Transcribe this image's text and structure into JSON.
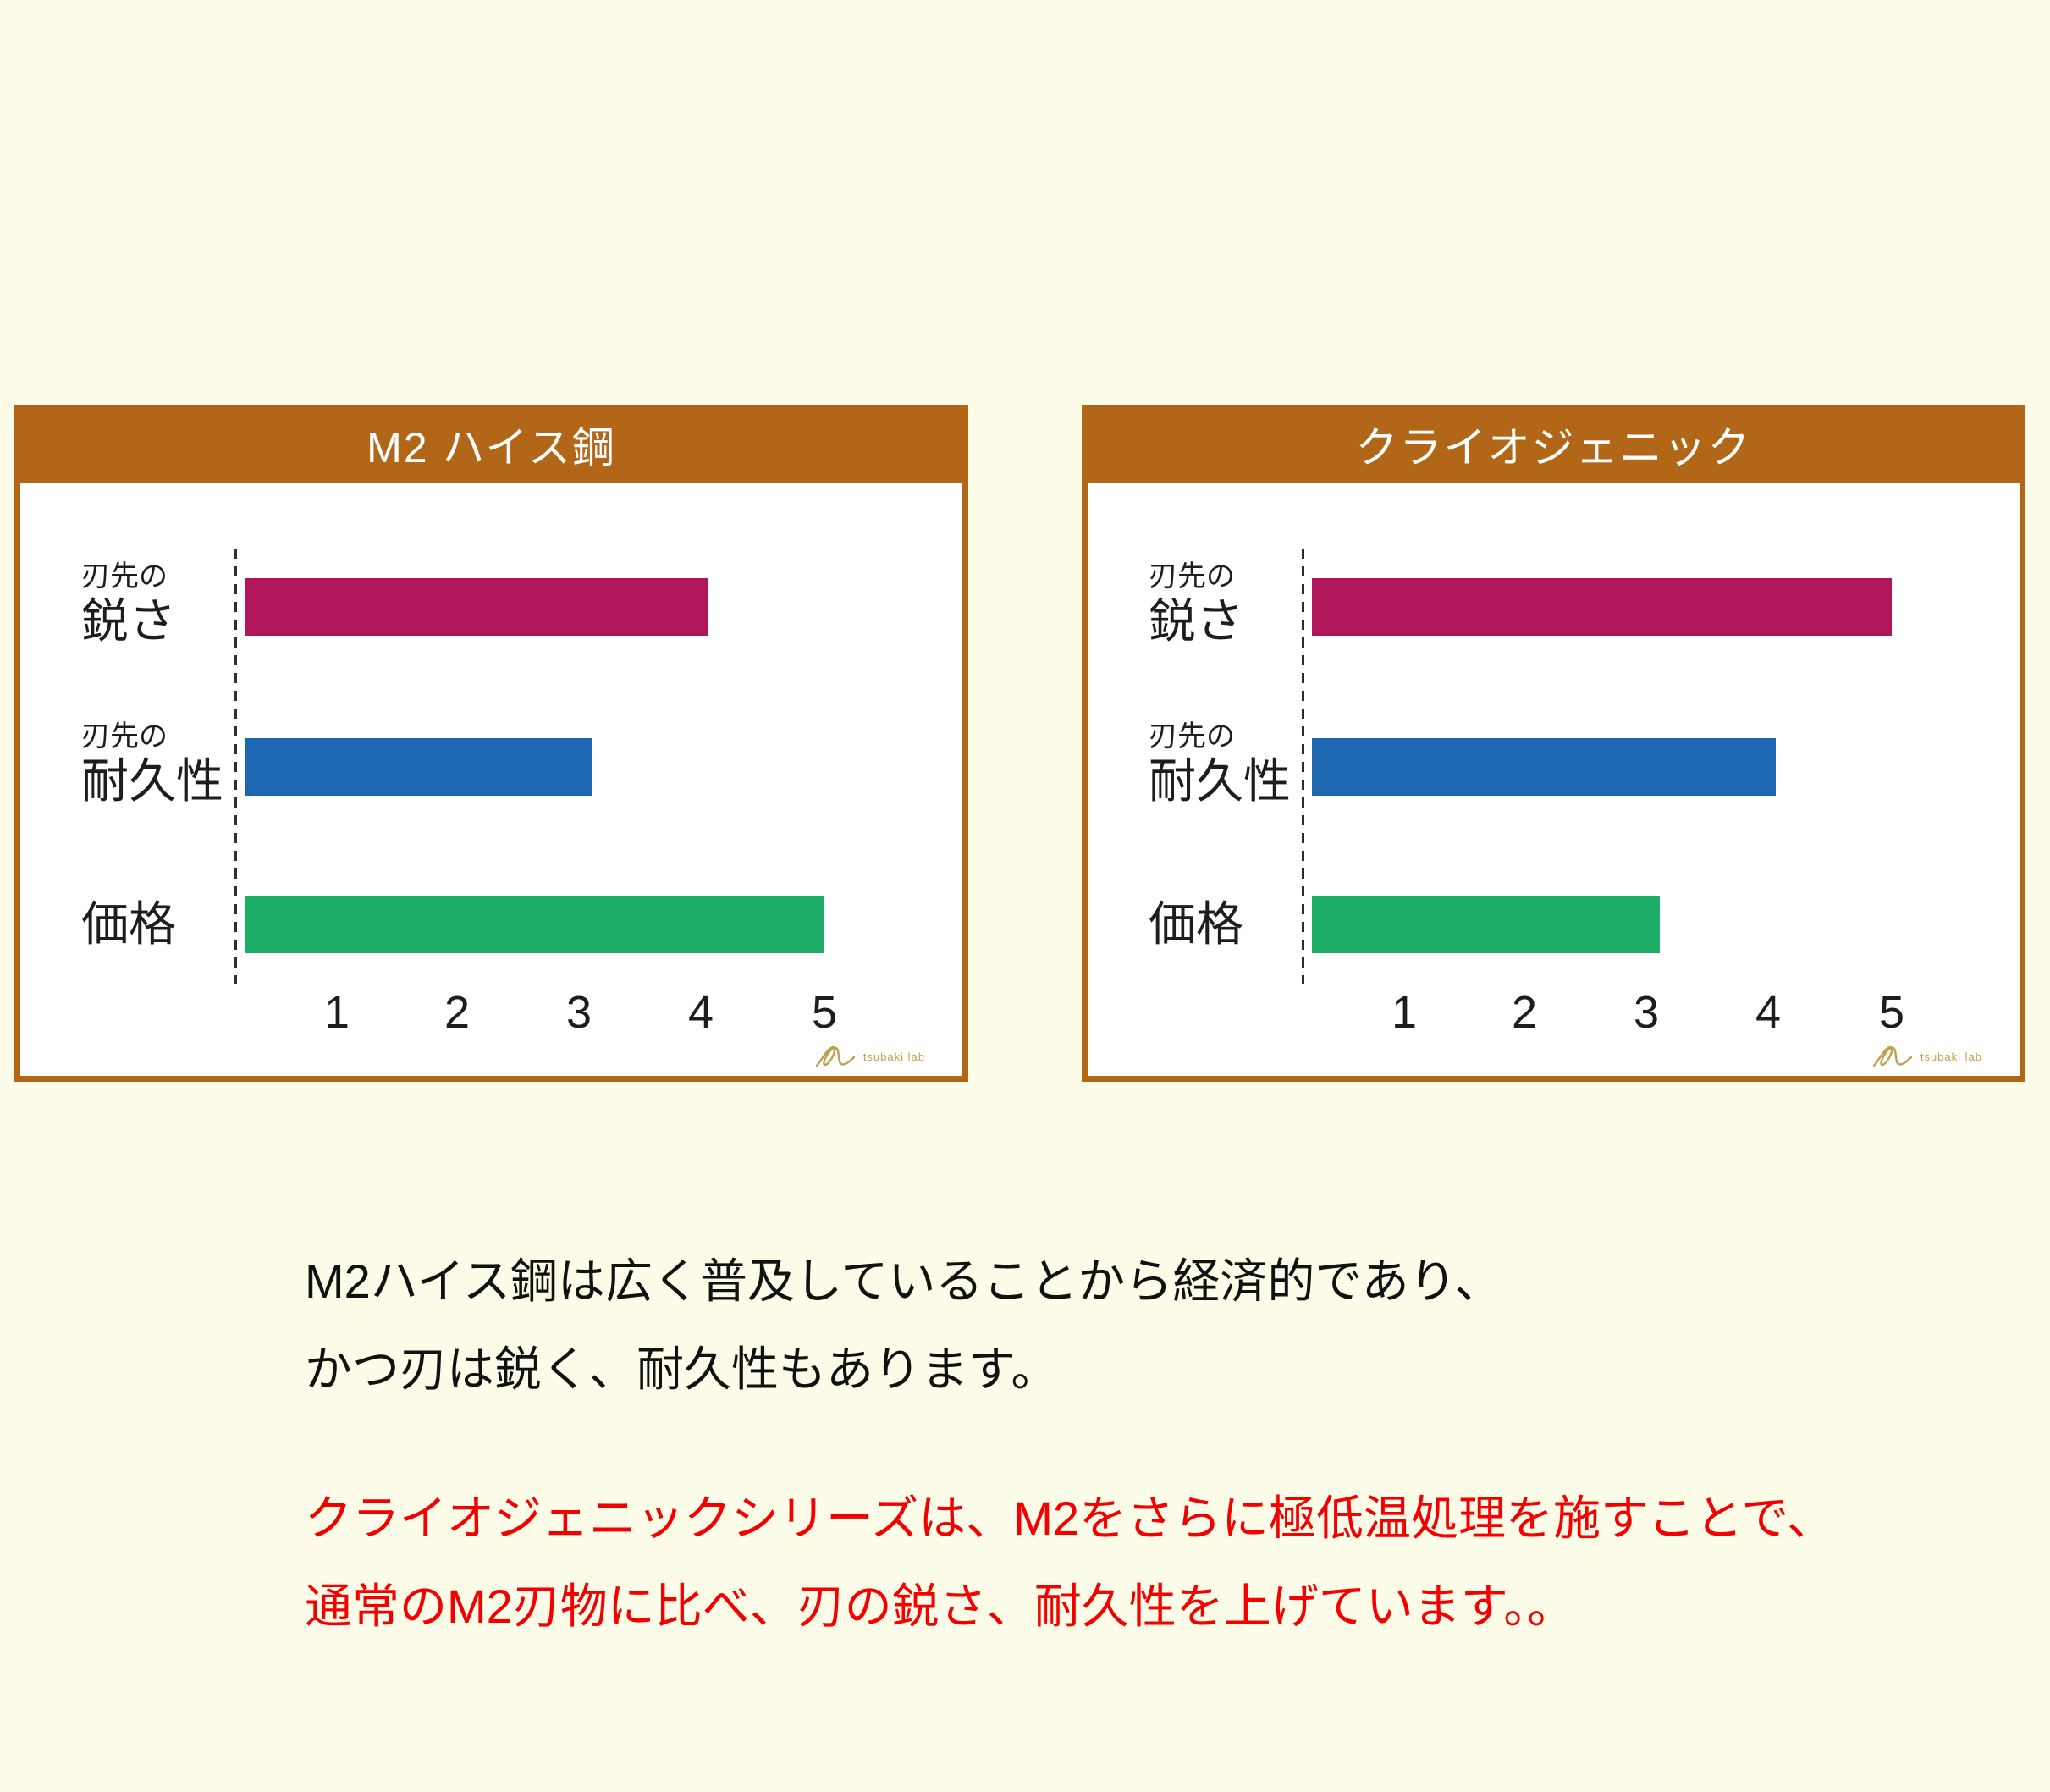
{
  "page": {
    "background": "#FCFCE8"
  },
  "theme": {
    "header_bg": "#B26617",
    "panel_border": "#B26617",
    "bar_crimson": "#B1165B",
    "bar_blue": "#1C67AF",
    "bar_green": "#1BAC65",
    "axis_dash_color": "#2E2E2E",
    "logo_gold": "#BFA050",
    "caption_black": "#111111",
    "caption_red": "#F40000"
  },
  "charts": [
    {
      "title": "M2 ハイス鋼",
      "rows": [
        {
          "label_small": "刃先の",
          "label": "鋭さ",
          "value": 4,
          "color": "#B1165B"
        },
        {
          "label_small": "刃先の",
          "label": "耐久性",
          "value": 3,
          "color": "#1C67AF"
        },
        {
          "label_small": "",
          "label": "価格",
          "value": 5,
          "color": "#1BAC65"
        }
      ],
      "x_ticks": [
        "1",
        "2",
        "3",
        "4",
        "5"
      ],
      "logo_text": "tsubaki lab"
    },
    {
      "title": "クライオジェニック",
      "rows": [
        {
          "label_small": "刃先の",
          "label": "鋭さ",
          "value": 5,
          "color": "#B1165B"
        },
        {
          "label_small": "刃先の",
          "label": "耐久性",
          "value": 4,
          "color": "#1C67AF"
        },
        {
          "label_small": "",
          "label": "価格",
          "value": 3,
          "color": "#1BAC65"
        }
      ],
      "x_ticks": [
        "1",
        "2",
        "3",
        "4",
        "5"
      ],
      "logo_text": "tsubaki lab"
    }
  ],
  "captions": {
    "black": {
      "color": "#111111",
      "lines": [
        "M2ハイス鋼は広く普及していることから経済的であり、",
        "かつ刃は鋭く、耐久性もあります。"
      ]
    },
    "red": {
      "color": "#F40000",
      "lines": [
        "クライオジェニックシリーズは、M2をさらに極低温処理を施すことで、",
        "通常のM2刃物に比べ、刃の鋭さ、耐久性を上げています。。"
      ]
    }
  },
  "chart_data": [
    {
      "type": "bar",
      "orientation": "horizontal",
      "title": "M2 ハイス鋼",
      "categories": [
        "刃先の鋭さ",
        "刃先の耐久性",
        "価格"
      ],
      "values": [
        4,
        3,
        5
      ],
      "bar_colors": [
        "#B1165B",
        "#1C67AF",
        "#1BAC65"
      ],
      "xlabel": "",
      "ylabel": "",
      "xlim": [
        0,
        5
      ],
      "x_ticks": [
        1,
        2,
        3,
        4,
        5
      ],
      "grid": false,
      "legend": false
    },
    {
      "type": "bar",
      "orientation": "horizontal",
      "title": "クライオジェニック",
      "categories": [
        "刃先の鋭さ",
        "刃先の耐久性",
        "価格"
      ],
      "values": [
        5,
        4,
        3
      ],
      "bar_colors": [
        "#B1165B",
        "#1C67AF",
        "#1BAC65"
      ],
      "xlabel": "",
      "ylabel": "",
      "xlim": [
        0,
        5
      ],
      "x_ticks": [
        1,
        2,
        3,
        4,
        5
      ],
      "grid": false,
      "legend": false
    }
  ]
}
